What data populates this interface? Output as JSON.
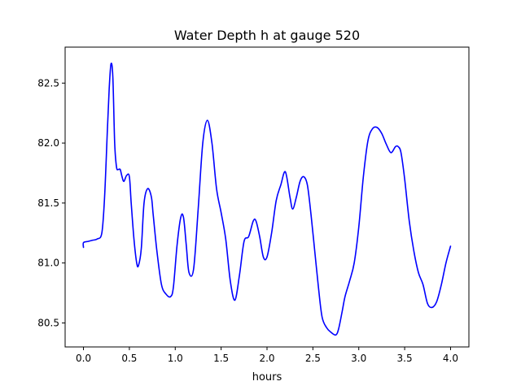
{
  "chart_data": {
    "type": "line",
    "title": "Water Depth h at gauge 520",
    "xlabel": "hours",
    "ylabel": "",
    "xlim": [
      -0.2,
      4.2
    ],
    "ylim": [
      80.3,
      82.8
    ],
    "xticks": [
      0.0,
      0.5,
      1.0,
      1.5,
      2.0,
      2.5,
      3.0,
      3.5,
      4.0
    ],
    "xtick_labels": [
      "0.0",
      "0.5",
      "1.0",
      "1.5",
      "2.0",
      "2.5",
      "3.0",
      "3.5",
      "4.0"
    ],
    "yticks": [
      80.5,
      81.0,
      81.5,
      82.0,
      82.5
    ],
    "ytick_labels": [
      "80.5",
      "81.0",
      "81.5",
      "82.0",
      "82.5"
    ],
    "grid": false,
    "series": [
      {
        "color": "#0000ff",
        "x": [
          0.0,
          0.0,
          0.05,
          0.1,
          0.15,
          0.2,
          0.23,
          0.26,
          0.28,
          0.3,
          0.32,
          0.34,
          0.36,
          0.38,
          0.4,
          0.42,
          0.44,
          0.47,
          0.5,
          0.52,
          0.55,
          0.58,
          0.6,
          0.63,
          0.66,
          0.7,
          0.74,
          0.76,
          0.8,
          0.85,
          0.9,
          0.95,
          0.98,
          1.02,
          1.06,
          1.09,
          1.12,
          1.15,
          1.2,
          1.25,
          1.3,
          1.35,
          1.4,
          1.45,
          1.5,
          1.55,
          1.6,
          1.65,
          1.7,
          1.75,
          1.8,
          1.85,
          1.88,
          1.92,
          1.96,
          2.0,
          2.05,
          2.1,
          2.15,
          2.2,
          2.25,
          2.28,
          2.32,
          2.36,
          2.4,
          2.44,
          2.48,
          2.52,
          2.56,
          2.6,
          2.65,
          2.7,
          2.75,
          2.78,
          2.82,
          2.85,
          2.9,
          2.95,
          3.0,
          3.05,
          3.1,
          3.15,
          3.2,
          3.25,
          3.3,
          3.35,
          3.4,
          3.43,
          3.46,
          3.5,
          3.55,
          3.6,
          3.65,
          3.7,
          3.75,
          3.8,
          3.85,
          3.9,
          3.95,
          4.0
        ],
        "y": [
          81.13,
          81.17,
          81.18,
          81.19,
          81.2,
          81.25,
          81.55,
          82.1,
          82.45,
          82.66,
          82.55,
          82.0,
          81.8,
          81.78,
          81.78,
          81.72,
          81.68,
          81.73,
          81.72,
          81.5,
          81.2,
          81.0,
          80.98,
          81.12,
          81.5,
          81.62,
          81.55,
          81.4,
          81.1,
          80.82,
          80.74,
          80.72,
          80.8,
          81.15,
          81.38,
          81.38,
          81.15,
          80.92,
          80.95,
          81.45,
          82.0,
          82.19,
          82.0,
          81.62,
          81.42,
          81.2,
          80.85,
          80.69,
          80.9,
          81.18,
          81.22,
          81.35,
          81.35,
          81.22,
          81.05,
          81.05,
          81.25,
          81.52,
          81.65,
          81.76,
          81.55,
          81.45,
          81.55,
          81.68,
          81.72,
          81.65,
          81.4,
          81.1,
          80.8,
          80.55,
          80.46,
          80.42,
          80.4,
          80.45,
          80.6,
          80.72,
          80.85,
          81.0,
          81.3,
          81.72,
          82.02,
          82.12,
          82.13,
          82.08,
          81.99,
          81.92,
          81.97,
          81.97,
          81.92,
          81.7,
          81.35,
          81.1,
          80.92,
          80.82,
          80.66,
          80.63,
          80.68,
          80.82,
          81.0,
          81.14
        ]
      }
    ]
  }
}
